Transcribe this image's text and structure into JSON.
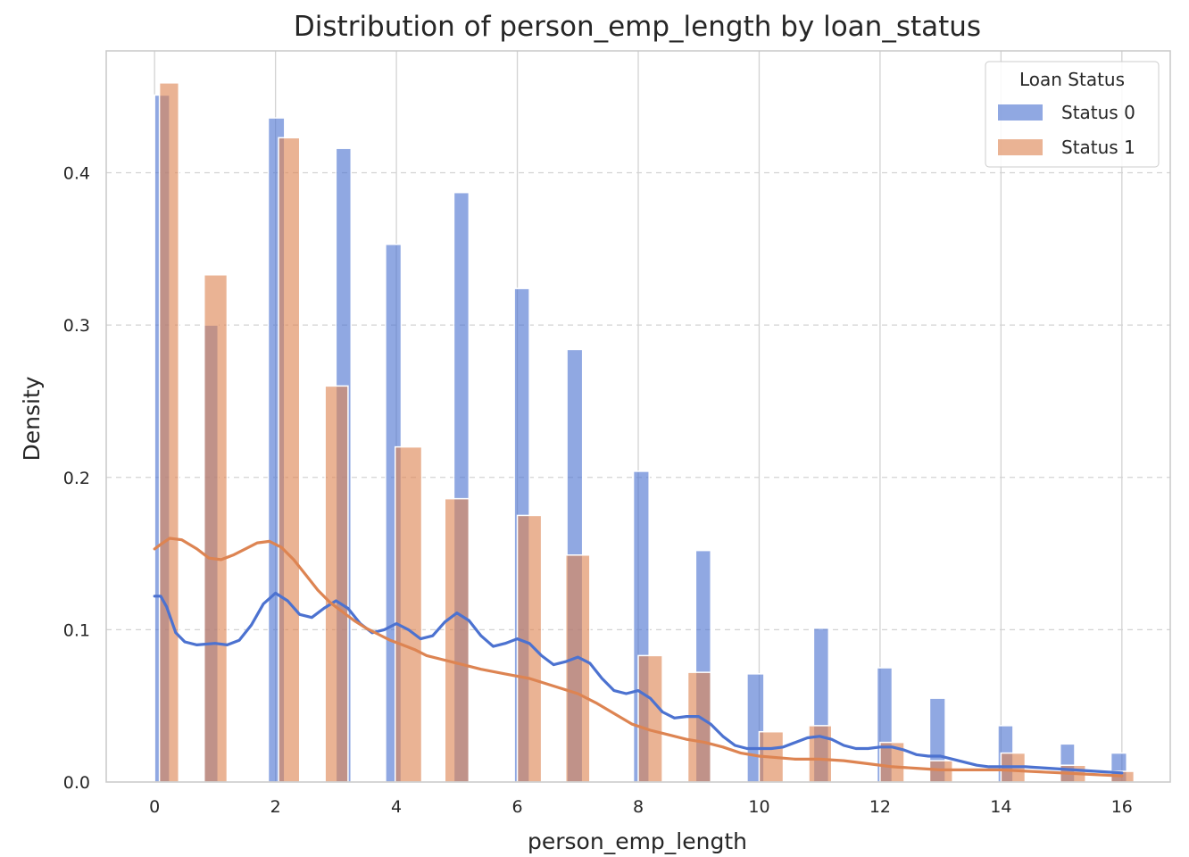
{
  "chart_data": {
    "type": "bar",
    "subtype": "histogram-with-kde",
    "title": "Distribution of person_emp_length by loan_status",
    "xlabel": "person_emp_length",
    "ylabel": "Density",
    "xlim": [
      -0.8,
      16.8
    ],
    "ylim": [
      0,
      0.48
    ],
    "x_ticks": [
      0,
      2,
      4,
      6,
      8,
      10,
      12,
      14,
      16
    ],
    "y_ticks": [
      0.0,
      0.1,
      0.2,
      0.3,
      0.4
    ],
    "x_tick_labels": [
      "0",
      "2",
      "4",
      "6",
      "8",
      "10",
      "12",
      "14",
      "16"
    ],
    "y_tick_labels": [
      "0.0",
      "0.1",
      "0.2",
      "0.3",
      "0.4"
    ],
    "grid": {
      "x": "solid",
      "y": "dashed"
    },
    "legend": {
      "title": "Loan Status",
      "placement": "top-right",
      "entries": [
        "Status 0",
        "Status 1"
      ]
    },
    "colors": {
      "status0": "#4c72d0",
      "status1": "#dd8452",
      "grid": "#d3d3d3",
      "frame": "#c8c8c8"
    },
    "series": [
      {
        "name": "Status 0",
        "bars": [
          {
            "x0": 0.0,
            "x1": 0.25,
            "y": 0.451
          },
          {
            "x0": 0.8,
            "x1": 1.05,
            "y": 0.3
          },
          {
            "x0": 1.88,
            "x1": 2.15,
            "y": 0.436
          },
          {
            "x0": 3.0,
            "x1": 3.25,
            "y": 0.416
          },
          {
            "x0": 3.82,
            "x1": 4.08,
            "y": 0.353
          },
          {
            "x0": 4.95,
            "x1": 5.2,
            "y": 0.387
          },
          {
            "x0": 5.95,
            "x1": 6.2,
            "y": 0.324
          },
          {
            "x0": 6.82,
            "x1": 7.08,
            "y": 0.284
          },
          {
            "x0": 7.92,
            "x1": 8.18,
            "y": 0.204
          },
          {
            "x0": 8.95,
            "x1": 9.2,
            "y": 0.152
          },
          {
            "x0": 9.8,
            "x1": 10.08,
            "y": 0.071
          },
          {
            "x0": 10.9,
            "x1": 11.15,
            "y": 0.101
          },
          {
            "x0": 11.95,
            "x1": 12.2,
            "y": 0.075
          },
          {
            "x0": 12.82,
            "x1": 13.08,
            "y": 0.055
          },
          {
            "x0": 13.95,
            "x1": 14.2,
            "y": 0.037
          },
          {
            "x0": 14.98,
            "x1": 15.22,
            "y": 0.025
          },
          {
            "x0": 15.82,
            "x1": 16.08,
            "y": 0.019
          }
        ],
        "kde": [
          [
            0.0,
            0.122
          ],
          [
            0.1,
            0.122
          ],
          [
            0.2,
            0.115
          ],
          [
            0.35,
            0.098
          ],
          [
            0.5,
            0.092
          ],
          [
            0.7,
            0.09
          ],
          [
            1.0,
            0.091
          ],
          [
            1.2,
            0.09
          ],
          [
            1.4,
            0.093
          ],
          [
            1.6,
            0.103
          ],
          [
            1.8,
            0.117
          ],
          [
            2.0,
            0.124
          ],
          [
            2.2,
            0.119
          ],
          [
            2.4,
            0.11
          ],
          [
            2.6,
            0.108
          ],
          [
            2.8,
            0.114
          ],
          [
            3.0,
            0.119
          ],
          [
            3.2,
            0.114
          ],
          [
            3.4,
            0.104
          ],
          [
            3.6,
            0.098
          ],
          [
            3.8,
            0.1
          ],
          [
            4.0,
            0.104
          ],
          [
            4.2,
            0.1
          ],
          [
            4.4,
            0.094
          ],
          [
            4.6,
            0.096
          ],
          [
            4.8,
            0.105
          ],
          [
            5.0,
            0.111
          ],
          [
            5.2,
            0.106
          ],
          [
            5.4,
            0.096
          ],
          [
            5.6,
            0.089
          ],
          [
            5.8,
            0.091
          ],
          [
            6.0,
            0.094
          ],
          [
            6.2,
            0.091
          ],
          [
            6.4,
            0.083
          ],
          [
            6.6,
            0.077
          ],
          [
            6.8,
            0.079
          ],
          [
            7.0,
            0.082
          ],
          [
            7.2,
            0.078
          ],
          [
            7.4,
            0.068
          ],
          [
            7.6,
            0.06
          ],
          [
            7.8,
            0.058
          ],
          [
            8.0,
            0.06
          ],
          [
            8.2,
            0.055
          ],
          [
            8.4,
            0.046
          ],
          [
            8.6,
            0.042
          ],
          [
            8.8,
            0.043
          ],
          [
            9.0,
            0.043
          ],
          [
            9.2,
            0.038
          ],
          [
            9.4,
            0.03
          ],
          [
            9.6,
            0.024
          ],
          [
            9.8,
            0.022
          ],
          [
            10.0,
            0.022
          ],
          [
            10.2,
            0.022
          ],
          [
            10.4,
            0.023
          ],
          [
            10.6,
            0.026
          ],
          [
            10.8,
            0.029
          ],
          [
            11.0,
            0.03
          ],
          [
            11.2,
            0.028
          ],
          [
            11.4,
            0.024
          ],
          [
            11.6,
            0.022
          ],
          [
            11.8,
            0.022
          ],
          [
            12.0,
            0.023
          ],
          [
            12.2,
            0.023
          ],
          [
            12.4,
            0.021
          ],
          [
            12.6,
            0.018
          ],
          [
            12.8,
            0.017
          ],
          [
            13.0,
            0.017
          ],
          [
            13.2,
            0.015
          ],
          [
            13.4,
            0.013
          ],
          [
            13.6,
            0.011
          ],
          [
            13.8,
            0.01
          ],
          [
            14.0,
            0.01
          ],
          [
            14.4,
            0.01
          ],
          [
            14.8,
            0.009
          ],
          [
            15.2,
            0.008
          ],
          [
            15.6,
            0.007
          ],
          [
            16.0,
            0.006
          ]
        ]
      },
      {
        "name": "Status 1",
        "bars": [
          {
            "x0": 0.08,
            "x1": 0.4,
            "y": 0.459
          },
          {
            "x0": 0.82,
            "x1": 1.2,
            "y": 0.333
          },
          {
            "x0": 2.05,
            "x1": 2.4,
            "y": 0.423
          },
          {
            "x0": 2.82,
            "x1": 3.2,
            "y": 0.26
          },
          {
            "x0": 3.98,
            "x1": 4.42,
            "y": 0.22
          },
          {
            "x0": 4.8,
            "x1": 5.2,
            "y": 0.186
          },
          {
            "x0": 6.0,
            "x1": 6.4,
            "y": 0.175
          },
          {
            "x0": 6.8,
            "x1": 7.2,
            "y": 0.149
          },
          {
            "x0": 8.0,
            "x1": 8.4,
            "y": 0.083
          },
          {
            "x0": 8.82,
            "x1": 9.2,
            "y": 0.072
          },
          {
            "x0": 10.0,
            "x1": 10.4,
            "y": 0.033
          },
          {
            "x0": 10.82,
            "x1": 11.2,
            "y": 0.037
          },
          {
            "x0": 12.0,
            "x1": 12.4,
            "y": 0.026
          },
          {
            "x0": 12.82,
            "x1": 13.2,
            "y": 0.014
          },
          {
            "x0": 14.0,
            "x1": 14.4,
            "y": 0.019
          },
          {
            "x0": 14.98,
            "x1": 15.4,
            "y": 0.011
          },
          {
            "x0": 15.82,
            "x1": 16.2,
            "y": 0.007
          }
        ],
        "kde": [
          [
            0.0,
            0.153
          ],
          [
            0.1,
            0.156
          ],
          [
            0.25,
            0.16
          ],
          [
            0.45,
            0.159
          ],
          [
            0.7,
            0.153
          ],
          [
            0.9,
            0.147
          ],
          [
            1.1,
            0.146
          ],
          [
            1.3,
            0.149
          ],
          [
            1.5,
            0.153
          ],
          [
            1.7,
            0.157
          ],
          [
            1.9,
            0.158
          ],
          [
            2.1,
            0.154
          ],
          [
            2.3,
            0.146
          ],
          [
            2.5,
            0.136
          ],
          [
            2.7,
            0.126
          ],
          [
            2.9,
            0.118
          ],
          [
            3.1,
            0.112
          ],
          [
            3.3,
            0.106
          ],
          [
            3.5,
            0.101
          ],
          [
            3.7,
            0.097
          ],
          [
            3.9,
            0.093
          ],
          [
            4.1,
            0.09
          ],
          [
            4.3,
            0.087
          ],
          [
            4.5,
            0.083
          ],
          [
            4.8,
            0.08
          ],
          [
            5.1,
            0.077
          ],
          [
            5.4,
            0.074
          ],
          [
            5.8,
            0.071
          ],
          [
            6.2,
            0.068
          ],
          [
            6.6,
            0.063
          ],
          [
            7.0,
            0.058
          ],
          [
            7.3,
            0.052
          ],
          [
            7.6,
            0.045
          ],
          [
            7.9,
            0.038
          ],
          [
            8.2,
            0.034
          ],
          [
            8.5,
            0.031
          ],
          [
            8.8,
            0.028
          ],
          [
            9.1,
            0.026
          ],
          [
            9.4,
            0.023
          ],
          [
            9.7,
            0.019
          ],
          [
            10.0,
            0.017
          ],
          [
            10.3,
            0.016
          ],
          [
            10.6,
            0.015
          ],
          [
            11.0,
            0.015
          ],
          [
            11.4,
            0.014
          ],
          [
            11.8,
            0.012
          ],
          [
            12.2,
            0.01
          ],
          [
            12.6,
            0.009
          ],
          [
            13.0,
            0.008
          ],
          [
            13.5,
            0.008
          ],
          [
            14.0,
            0.008
          ],
          [
            14.5,
            0.007
          ],
          [
            15.0,
            0.006
          ],
          [
            15.5,
            0.005
          ],
          [
            16.0,
            0.004
          ]
        ]
      }
    ]
  }
}
